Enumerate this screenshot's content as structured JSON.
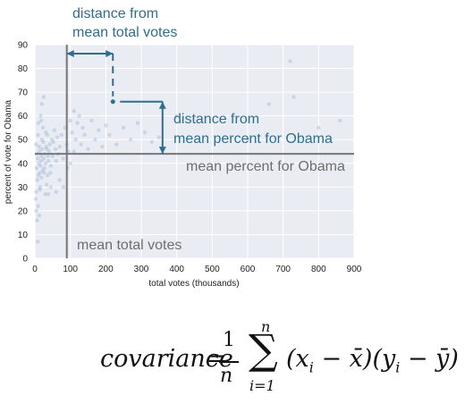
{
  "chart_data": {
    "type": "scatter",
    "xlabel": "total votes (thousands)",
    "ylabel": "percent of vote for Obama",
    "xlim": [
      0,
      900
    ],
    "ylim": [
      0,
      90
    ],
    "x_ticks": [
      "0",
      "100",
      "200",
      "300",
      "400",
      "500",
      "600",
      "700",
      "800",
      "900"
    ],
    "y_ticks": [
      "0",
      "10",
      "20",
      "30",
      "40",
      "50",
      "60",
      "70",
      "80",
      "90"
    ],
    "grid": true,
    "mean_x": 90,
    "mean_y": 44,
    "highlight_point": {
      "x": 220,
      "y": 66
    },
    "annotations": {
      "mean_x_label": "mean total votes",
      "mean_y_label": "mean percent for Obama",
      "dist_x_line1": "distance from",
      "dist_x_line2": "mean total votes",
      "dist_y_line1": "distance from",
      "dist_y_line2": "mean percent for Obama"
    },
    "points": [
      [
        5,
        38
      ],
      [
        8,
        42
      ],
      [
        10,
        35
      ],
      [
        12,
        47
      ],
      [
        15,
        30
      ],
      [
        6,
        44
      ],
      [
        9,
        52
      ],
      [
        11,
        40
      ],
      [
        14,
        36
      ],
      [
        7,
        33
      ],
      [
        4,
        28
      ],
      [
        3,
        48
      ],
      [
        13,
        45
      ],
      [
        16,
        39
      ],
      [
        18,
        43
      ],
      [
        20,
        50
      ],
      [
        22,
        37
      ],
      [
        17,
        41
      ],
      [
        19,
        34
      ],
      [
        21,
        46
      ],
      [
        23,
        55
      ],
      [
        25,
        42
      ],
      [
        27,
        38
      ],
      [
        24,
        49
      ],
      [
        26,
        36
      ],
      [
        28,
        44
      ],
      [
        30,
        40
      ],
      [
        32,
        47
      ],
      [
        35,
        52
      ],
      [
        38,
        41
      ],
      [
        40,
        45
      ],
      [
        42,
        48
      ],
      [
        45,
        39
      ],
      [
        48,
        50
      ],
      [
        50,
        43
      ],
      [
        33,
        31
      ],
      [
        36,
        35
      ],
      [
        29,
        27
      ],
      [
        31,
        53
      ],
      [
        34,
        46
      ],
      [
        2,
        25
      ],
      [
        4,
        20
      ],
      [
        6,
        16
      ],
      [
        9,
        22
      ],
      [
        12,
        18
      ],
      [
        8,
        7
      ],
      [
        14,
        29
      ],
      [
        10,
        57
      ],
      [
        16,
        60
      ],
      [
        20,
        65
      ],
      [
        25,
        68
      ],
      [
        18,
        58
      ],
      [
        37,
        43
      ],
      [
        44,
        36
      ],
      [
        52,
        49
      ],
      [
        55,
        54
      ],
      [
        58,
        46
      ],
      [
        60,
        41
      ],
      [
        63,
        51
      ],
      [
        66,
        44
      ],
      [
        70,
        47
      ],
      [
        75,
        52
      ],
      [
        80,
        42
      ],
      [
        85,
        55
      ],
      [
        90,
        48
      ],
      [
        95,
        45
      ],
      [
        100,
        58
      ],
      [
        105,
        53
      ],
      [
        110,
        62
      ],
      [
        115,
        50
      ],
      [
        120,
        57
      ],
      [
        125,
        60
      ],
      [
        130,
        48
      ],
      [
        135,
        55
      ],
      [
        140,
        52
      ],
      [
        150,
        46
      ],
      [
        160,
        58
      ],
      [
        170,
        50
      ],
      [
        180,
        54
      ],
      [
        190,
        47
      ],
      [
        200,
        56
      ],
      [
        210,
        52
      ],
      [
        230,
        48
      ],
      [
        250,
        55
      ],
      [
        270,
        50
      ],
      [
        290,
        57
      ],
      [
        310,
        53
      ],
      [
        330,
        49
      ],
      [
        350,
        51
      ],
      [
        400,
        60
      ],
      [
        60,
        28
      ],
      [
        70,
        33
      ],
      [
        80,
        30
      ],
      [
        45,
        30
      ],
      [
        38,
        27
      ],
      [
        92,
        38
      ],
      [
        100,
        40
      ],
      [
        110,
        45
      ],
      [
        660,
        65
      ],
      [
        730,
        68
      ],
      [
        720,
        83
      ],
      [
        800,
        55
      ],
      [
        860,
        58
      ],
      [
        600,
        50
      ]
    ]
  }
}
